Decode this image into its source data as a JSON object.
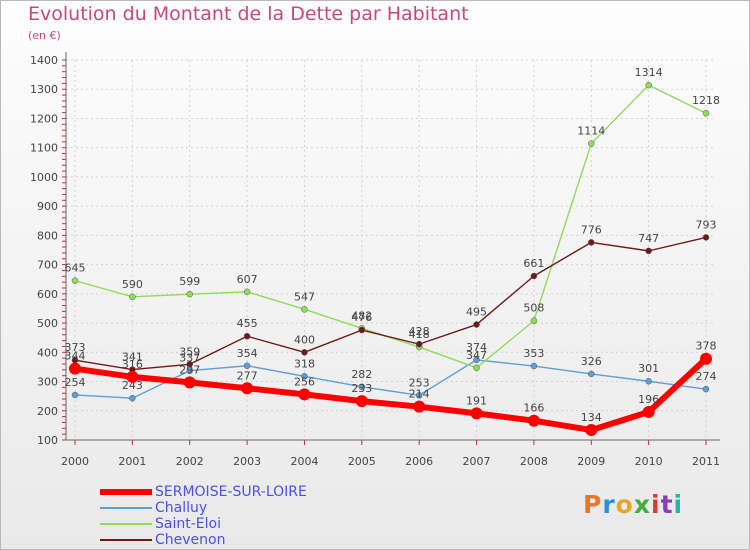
{
  "title": "Evolution du Montant de la Dette par Habitant",
  "subtitle": "(en €)",
  "logo": {
    "letters": [
      "P",
      "r",
      "o",
      "x",
      "i",
      "t",
      "i"
    ],
    "colors": [
      "#e8772a",
      "#2a8fd8",
      "#e8a52a",
      "#3fae3a",
      "#d83a3a",
      "#8a3fb0",
      "#2ab0a8"
    ]
  },
  "chart_data": {
    "type": "line",
    "title": "Evolution du Montant de la Dette par Habitant",
    "subtitle": "(en €)",
    "xlabel": "",
    "ylabel": "",
    "x": [
      "2000",
      "2001",
      "2002",
      "2003",
      "2004",
      "2005",
      "2006",
      "2007",
      "2008",
      "2009",
      "2010",
      "2011"
    ],
    "ylim": [
      100,
      1400
    ],
    "yticks": [
      100,
      200,
      300,
      400,
      500,
      600,
      700,
      800,
      900,
      1000,
      1100,
      1200,
      1300,
      1400
    ],
    "grid": true,
    "legend_position": "bottom-left",
    "series": [
      {
        "name": "SERMOISE-SUR-LOIRE",
        "color": "#ff0000",
        "values": [
          344,
          316,
          297,
          277,
          256,
          233,
          214,
          191,
          166,
          134,
          196,
          378
        ]
      },
      {
        "name": "Challuy",
        "color": "#5f9fd4",
        "values": [
          254,
          243,
          337,
          354,
          318,
          282,
          253,
          374,
          353,
          326,
          301,
          274
        ]
      },
      {
        "name": "Saint-Eloi",
        "color": "#8fdc5a",
        "values": [
          645,
          590,
          599,
          607,
          547,
          482,
          418,
          347,
          508,
          1114,
          1314,
          1218
        ]
      },
      {
        "name": "Chevenon",
        "color": "#6e1a1a",
        "values": [
          373,
          341,
          359,
          455,
          400,
          476,
          428,
          495,
          661,
          776,
          747,
          793
        ]
      }
    ]
  }
}
